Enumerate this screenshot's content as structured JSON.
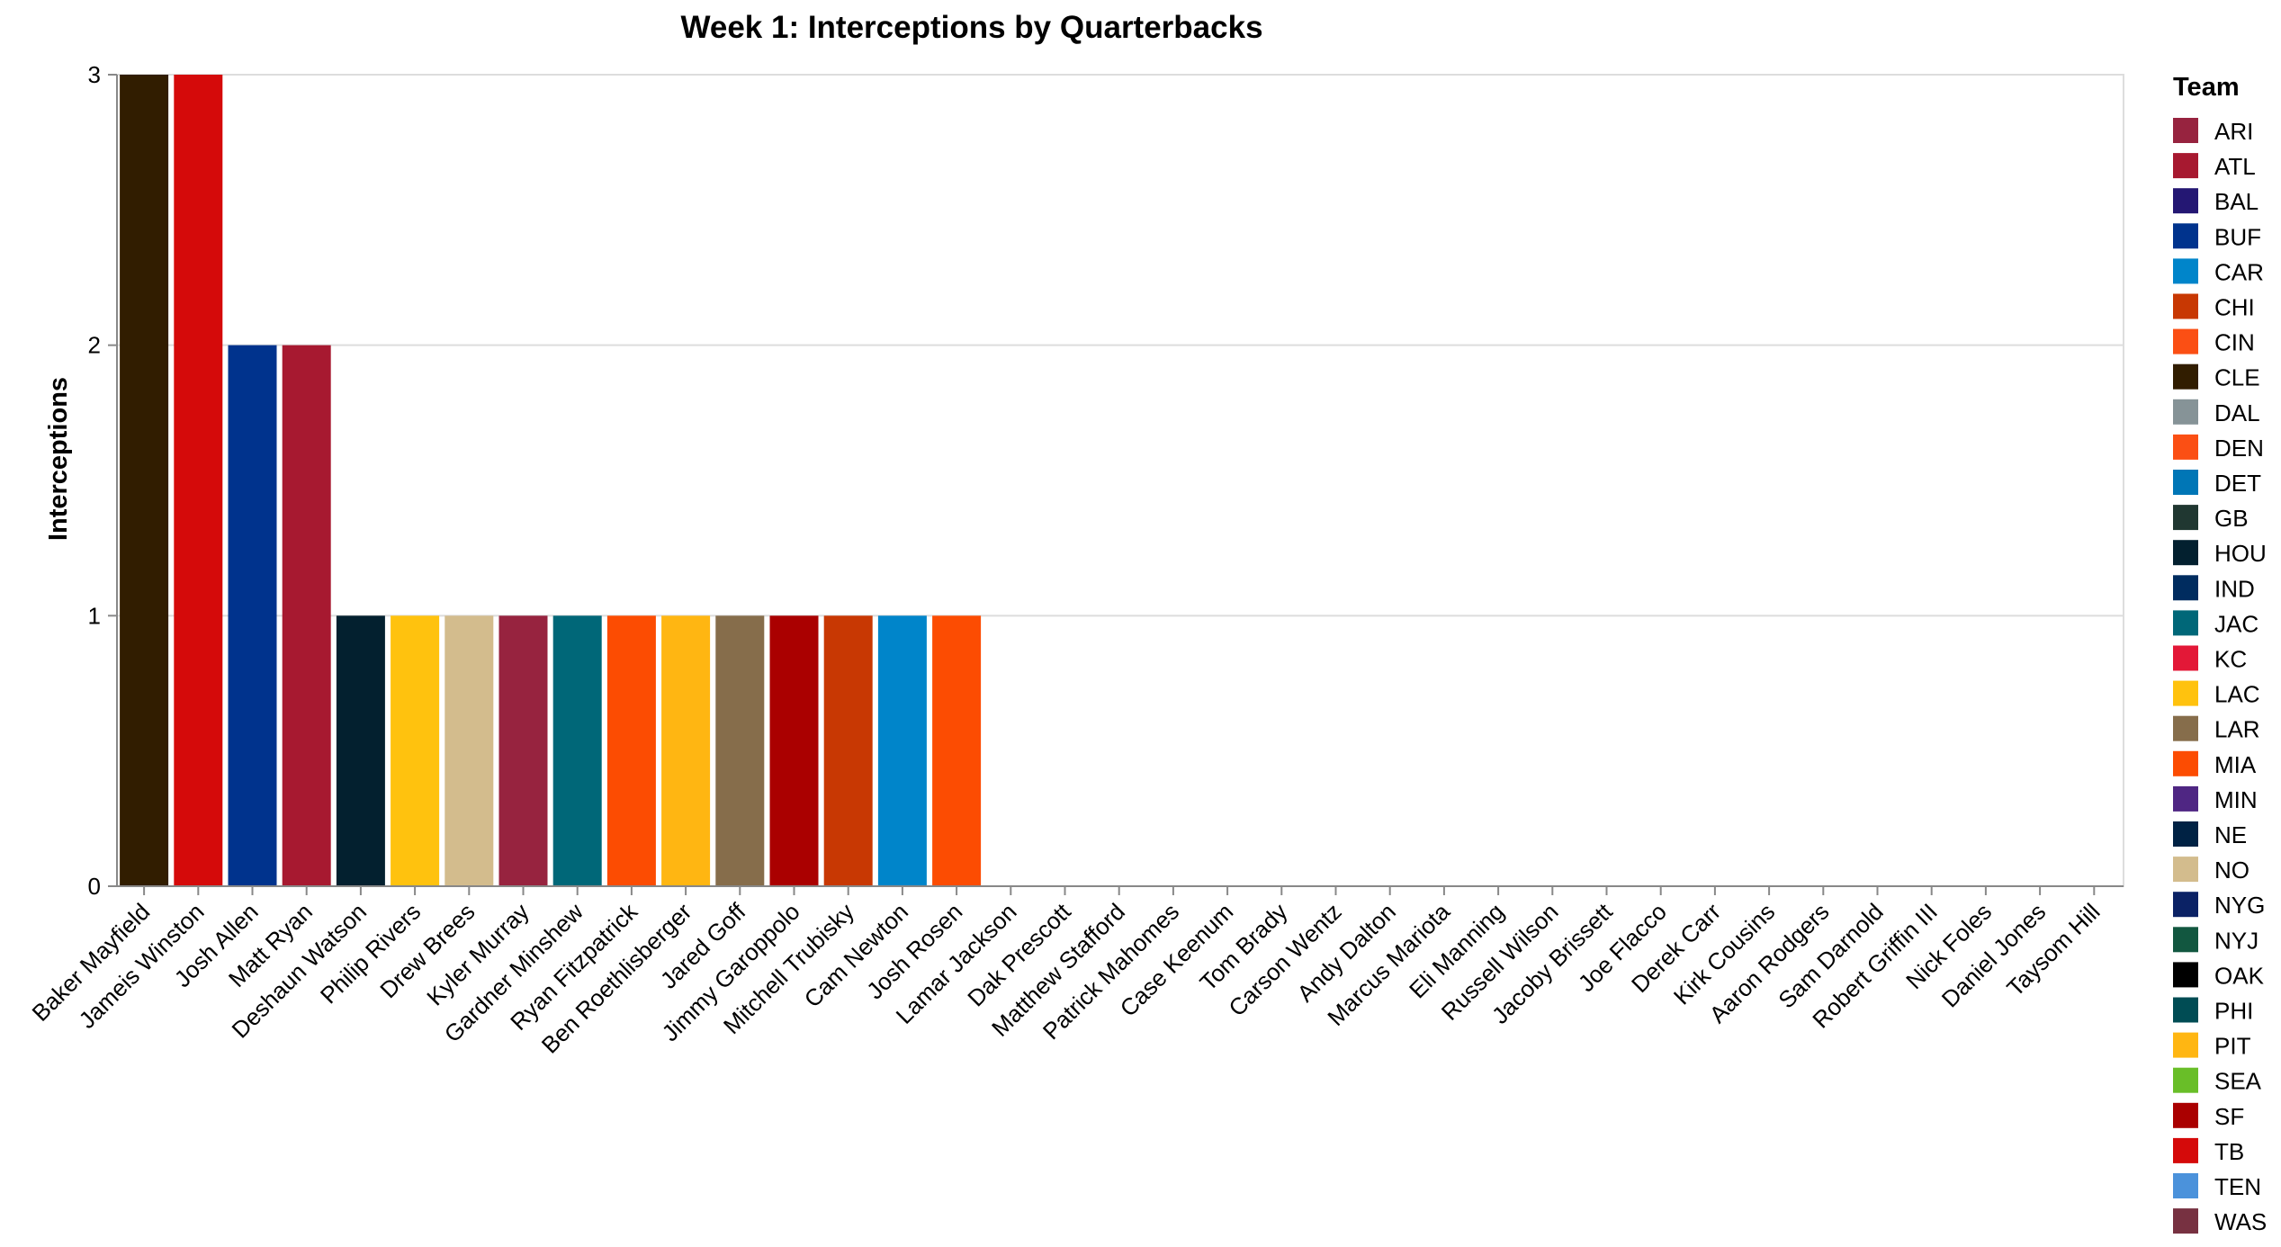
{
  "chart_data": {
    "type": "bar",
    "title": "Week 1: Interceptions by Quarterbacks",
    "xlabel": "",
    "ylabel": "Interceptions",
    "ylim": [
      0,
      3
    ],
    "yticks": [
      "0",
      "1",
      "2",
      "3"
    ],
    "grid": true,
    "legend_title": "Team",
    "legend_position": "right",
    "categories": [
      "Baker Mayfield",
      "Jameis Winston",
      "Josh Allen",
      "Matt Ryan",
      "Deshaun Watson",
      "Philip Rivers",
      "Drew Brees",
      "Kyler Murray",
      "Gardner Minshew",
      "Ryan Fitzpatrick",
      "Ben Roethlisberger",
      "Jared Goff",
      "Jimmy Garoppolo",
      "Mitchell Trubisky",
      "Cam Newton",
      "Josh Rosen",
      "Lamar Jackson",
      "Dak Prescott",
      "Matthew Stafford",
      "Patrick Mahomes",
      "Case Keenum",
      "Tom Brady",
      "Carson Wentz",
      "Andy Dalton",
      "Marcus Mariota",
      "Eli Manning",
      "Russell Wilson",
      "Jacoby Brissett",
      "Joe Flacco",
      "Derek Carr",
      "Kirk Cousins",
      "Aaron Rodgers",
      "Sam Darnold",
      "Robert Griffin III",
      "Nick Foles",
      "Daniel Jones",
      "Taysom Hill"
    ],
    "values": [
      3,
      3,
      2,
      2,
      1,
      1,
      1,
      1,
      1,
      1,
      1,
      1,
      1,
      1,
      1,
      1,
      0,
      0,
      0,
      0,
      0,
      0,
      0,
      0,
      0,
      0,
      0,
      0,
      0,
      0,
      0,
      0,
      0,
      0,
      0,
      0,
      0
    ],
    "bar_colors": [
      "#311D00",
      "#D50A0A",
      "#00338D",
      "#A71930",
      "#03202F",
      "#FFC20E",
      "#D3BC8D",
      "#97233F",
      "#006778",
      "#FC4C02",
      "#FFB612",
      "#866D4B",
      "#AA0000",
      "#C83803",
      "#0085CA",
      "#FC4C02",
      "",
      "",
      "",
      "",
      "",
      "",
      "",
      "",
      "",
      "",
      "",
      "",
      "",
      "",
      "",
      "",
      "",
      "",
      "",
      "",
      ""
    ],
    "legend": [
      {
        "label": "ARI",
        "color": "#97233F"
      },
      {
        "label": "ATL",
        "color": "#A71930"
      },
      {
        "label": "BAL",
        "color": "#241773"
      },
      {
        "label": "BUF",
        "color": "#00338D"
      },
      {
        "label": "CAR",
        "color": "#0085CA"
      },
      {
        "label": "CHI",
        "color": "#C83803"
      },
      {
        "label": "CIN",
        "color": "#FB4F14"
      },
      {
        "label": "CLE",
        "color": "#311D00"
      },
      {
        "label": "DAL",
        "color": "#869397"
      },
      {
        "label": "DEN",
        "color": "#FB4F14"
      },
      {
        "label": "DET",
        "color": "#0076B6"
      },
      {
        "label": "GB",
        "color": "#203731"
      },
      {
        "label": "HOU",
        "color": "#03202F"
      },
      {
        "label": "IND",
        "color": "#002C5F"
      },
      {
        "label": "JAC",
        "color": "#006778"
      },
      {
        "label": "KC",
        "color": "#E31837"
      },
      {
        "label": "LAC",
        "color": "#FFC20E"
      },
      {
        "label": "LAR",
        "color": "#866D4B"
      },
      {
        "label": "MIA",
        "color": "#FC4C02"
      },
      {
        "label": "MIN",
        "color": "#4F2683"
      },
      {
        "label": "NE",
        "color": "#002244"
      },
      {
        "label": "NO",
        "color": "#D3BC8D"
      },
      {
        "label": "NYG",
        "color": "#0B2265"
      },
      {
        "label": "NYJ",
        "color": "#125740"
      },
      {
        "label": "OAK",
        "color": "#000000"
      },
      {
        "label": "PHI",
        "color": "#004C54"
      },
      {
        "label": "PIT",
        "color": "#FFB612"
      },
      {
        "label": "SEA",
        "color": "#69BE28"
      },
      {
        "label": "SF",
        "color": "#AA0000"
      },
      {
        "label": "TB",
        "color": "#D50A0A"
      },
      {
        "label": "TEN",
        "color": "#4B92DB"
      },
      {
        "label": "WAS",
        "color": "#773141"
      }
    ]
  }
}
